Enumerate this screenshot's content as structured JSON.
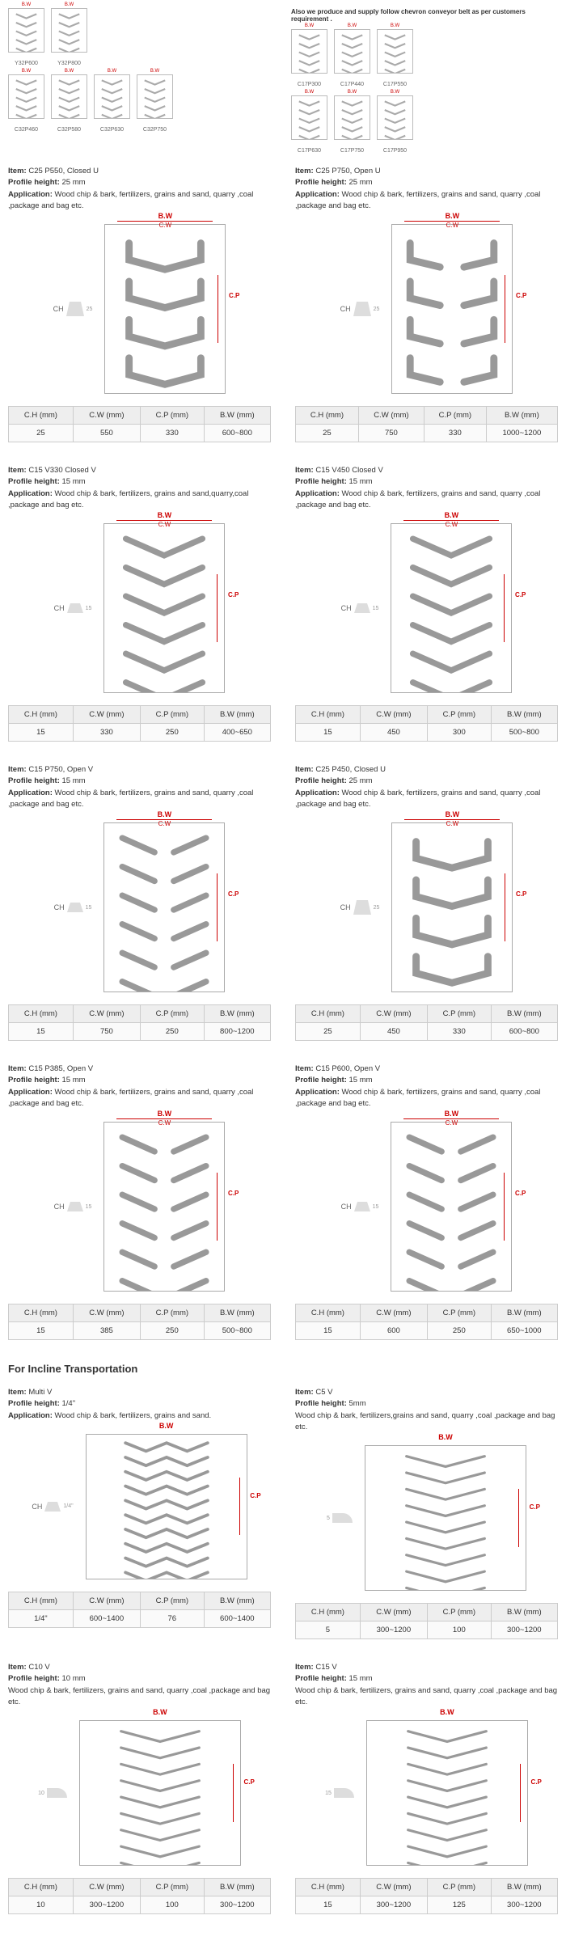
{
  "thumbs_note": "Also we produce and supply follow chevron conveyor belt as per customers requirement .",
  "thumbs_left_row1": [
    "Y32P600",
    "Y32P800"
  ],
  "thumbs_left_row2": [
    "C32P460",
    "C32P580",
    "C32P630",
    "C32P750"
  ],
  "thumbs_right_row1": [
    "C17P300",
    "C17P440",
    "C17P550"
  ],
  "thumbs_right_row2": [
    "C17P630",
    "C17P750",
    "C17P950"
  ],
  "table_headers": [
    "C.H (mm)",
    "C.W (mm)",
    "C.P (mm)",
    "B.W (mm)"
  ],
  "section_header": "For Incline Transportation",
  "bw_label": "B.W",
  "cw_label": "C.W",
  "cp_label": "C.P",
  "ch_label": "CH",
  "accent_color": "#cc0000",
  "blocks": [
    {
      "left": {
        "item": "C25 P550, Closed U",
        "profile_h": "25 mm",
        "app": "Wood chip & bark, fertilizers, grains and sand, quarry ,coal ,package and bag etc.",
        "ch_val": "25",
        "pattern": "closed_u",
        "row": [
          "25",
          "550",
          "330",
          "600~800"
        ]
      },
      "right": {
        "item": "C25 P750, Open U",
        "profile_h": "25 mm",
        "app": "Wood chip & bark, fertilizers, grains and sand, quarry ,coal ,package and bag etc.",
        "ch_val": "25",
        "pattern": "open_u",
        "row": [
          "25",
          "750",
          "330",
          "1000~1200"
        ]
      }
    },
    {
      "left": {
        "item": "C15 V330  Closed V",
        "profile_h": "15 mm",
        "app": "Wood chip &  bark, fertilizers, grains and sand,quarry,coal ,package  and bag etc.",
        "ch_val": "15",
        "pattern": "closed_v",
        "row": [
          "15",
          "330",
          "250",
          "400~650"
        ]
      },
      "right": {
        "item": "C15 V450  Closed V",
        "profile_h": "15 mm",
        "app": "Wood chip & bark, fertilizers, grains and sand, quarry ,coal ,package and bag etc.",
        "ch_val": "15",
        "pattern": "closed_v",
        "row": [
          "15",
          "450",
          "300",
          "500~800"
        ]
      }
    },
    {
      "left": {
        "item": "C15 P750, Open V",
        "profile_h": "15 mm",
        "app": "Wood chip & bark, fertilizers, grains and sand, quarry ,coal ,package and bag etc.",
        "ch_val": "15",
        "pattern": "open_v",
        "row": [
          "15",
          "750",
          "250",
          "800~1200"
        ]
      },
      "right": {
        "item": "C25 P450, Closed U",
        "profile_h": "25 mm",
        "app": "Wood chip & bark, fertilizers, grains and sand, quarry ,coal ,package and bag etc.",
        "ch_val": "25",
        "pattern": "closed_u",
        "row": [
          "25",
          "450",
          "330",
          "600~800"
        ]
      }
    },
    {
      "left": {
        "item": "C15 P385, Open V",
        "profile_h": "15 mm",
        "app": "Wood chip & bark, fertilizers, grains and sand, quarry ,coal ,package and bag etc.",
        "ch_val": "15",
        "pattern": "open_v",
        "row": [
          "15",
          "385",
          "250",
          "500~800"
        ]
      },
      "right": {
        "item": "C15 P600, Open V",
        "profile_h": "15 mm",
        "app": "Wood chip & bark, fertilizers, grains and sand, quarry ,coal ,package and bag etc.",
        "ch_val": "15",
        "pattern": "open_v",
        "row": [
          "15",
          "600",
          "250",
          "650~1000"
        ]
      }
    }
  ],
  "incline_blocks": [
    {
      "left": {
        "item": "Multi V",
        "profile_h": "1/4\"",
        "app": "Wood chip & bark, fertilizers, grains and sand.",
        "ch_val": "1/4\"",
        "pattern": "multi_v",
        "show_app_label": true,
        "row": [
          "1/4\"",
          "600~1400",
          "76",
          "600~1400"
        ]
      },
      "right": {
        "item": "C5 V",
        "profile_h": "5mm",
        "app": "Wood chip & bark, fertilizers,grains and sand, quarry ,coal ,package and bag etc.",
        "ch_val": "5",
        "pattern": "v_lines",
        "show_app_label": false,
        "small_profile": true,
        "row": [
          "5",
          "300~1200",
          "100",
          "300~1200"
        ]
      }
    },
    {
      "left": {
        "item": "C10  V",
        "profile_h": "10 mm",
        "app": "Wood chip & bark, fertilizers, grains and sand, quarry ,coal ,package and bag etc.",
        "ch_val": "10",
        "pattern": "v_lines",
        "show_app_label": false,
        "small_profile": true,
        "row": [
          "10",
          "300~1200",
          "100",
          "300~1200"
        ]
      },
      "right": {
        "item": "C15 V",
        "profile_h": "15 mm",
        "app": "Wood chip & bark, fertilizers, grains and sand, quarry ,coal ,package and bag etc.",
        "ch_val": "15",
        "pattern": "v_lines",
        "show_app_label": false,
        "small_profile": true,
        "row": [
          "15",
          "300~1200",
          "125",
          "300~1200"
        ]
      }
    }
  ]
}
